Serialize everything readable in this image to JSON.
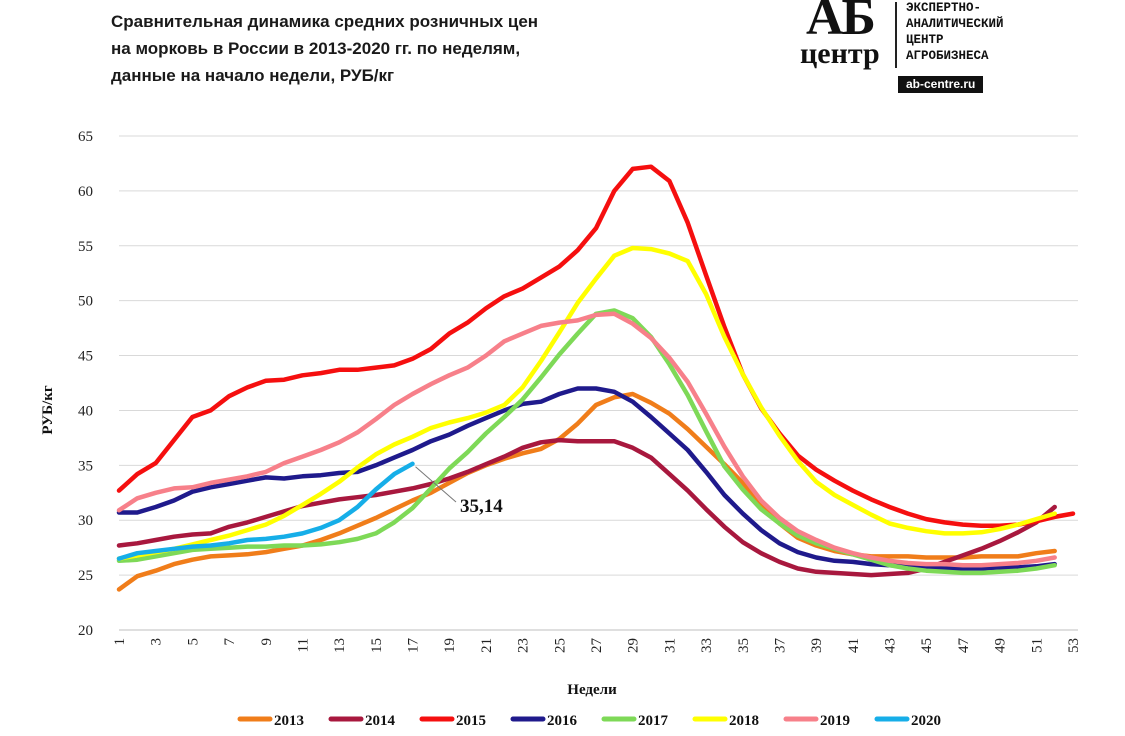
{
  "title_lines": [
    "Сравнительная  динамика  средних  розничных  цен",
    "на морковь  в России в 2013-2020 гг. по неделям,",
    "данные  на начало  недели, РУБ/кг"
  ],
  "logo": {
    "ab": "АБ",
    "center": "центр",
    "text_lines": [
      "ЭКСПЕРТНО-",
      "АНАЛИТИЧЕСКИЙ",
      "ЦЕНТР",
      "АГРОБИЗНЕСА"
    ],
    "url": "ab-centre.ru"
  },
  "chart_data": {
    "type": "line",
    "title": "Сравнительная динамика средних розничных цен на морковь в России в 2013-2020 гг. по неделям, данные на начало недели, РУБ/кг",
    "xlabel": "Недели",
    "ylabel": "РУБ/кг",
    "xlim": [
      1,
      53
    ],
    "ylim": [
      20,
      65
    ],
    "x_ticks": [
      1,
      3,
      5,
      7,
      9,
      11,
      13,
      15,
      17,
      19,
      21,
      23,
      25,
      27,
      29,
      31,
      33,
      35,
      37,
      39,
      41,
      43,
      45,
      47,
      49,
      51,
      53
    ],
    "y_ticks": [
      20,
      25,
      30,
      35,
      40,
      45,
      50,
      55,
      60,
      65
    ],
    "gridlines": "horizontal",
    "legend_position": "bottom",
    "annotation": {
      "text": "35,14",
      "series": "2020",
      "week": 17,
      "value": 35.14
    },
    "series": [
      {
        "name": "2013",
        "color": "#f07d1a",
        "start_week": 1,
        "values": [
          23.7,
          24.9,
          25.4,
          26.0,
          26.4,
          26.7,
          26.8,
          26.9,
          27.1,
          27.4,
          27.7,
          28.2,
          28.8,
          29.5,
          30.2,
          31.0,
          31.8,
          32.5,
          33.4,
          34.3,
          35.0,
          35.6,
          36.1,
          36.5,
          37.4,
          38.8,
          40.5,
          41.2,
          41.5,
          40.7,
          39.7,
          38.3,
          36.7,
          35.1,
          33.4,
          31.5,
          29.7,
          28.4,
          27.7,
          27.2,
          26.9,
          26.7,
          26.7,
          26.7,
          26.6,
          26.6,
          26.6,
          26.7,
          26.7,
          26.7,
          27.0,
          27.2
        ]
      },
      {
        "name": "2014",
        "color": "#a8183e",
        "start_week": 1,
        "values": [
          27.7,
          27.9,
          28.2,
          28.5,
          28.7,
          28.8,
          29.4,
          29.8,
          30.3,
          30.8,
          31.3,
          31.6,
          31.9,
          32.1,
          32.3,
          32.6,
          32.9,
          33.3,
          33.8,
          34.4,
          35.1,
          35.8,
          36.6,
          37.1,
          37.3,
          37.2,
          37.2,
          37.2,
          36.6,
          35.7,
          34.2,
          32.7,
          31.0,
          29.4,
          28.0,
          27.0,
          26.2,
          25.6,
          25.3,
          25.2,
          25.1,
          25.0,
          25.1,
          25.2,
          25.6,
          26.2,
          26.8,
          27.4,
          28.1,
          28.9,
          29.8,
          31.2
        ]
      },
      {
        "name": "2015",
        "color": "#f50f0f",
        "start_week": 1,
        "values": [
          32.7,
          34.2,
          35.2,
          37.3,
          39.4,
          40.0,
          41.3,
          42.1,
          42.7,
          42.8,
          43.2,
          43.4,
          43.7,
          43.7,
          43.9,
          44.1,
          44.7,
          45.6,
          47.0,
          48.0,
          49.3,
          50.4,
          51.1,
          52.1,
          53.1,
          54.6,
          56.6,
          60.0,
          62.0,
          62.2,
          60.9,
          57.1,
          52.3,
          47.6,
          43.3,
          40.2,
          37.9,
          35.9,
          34.6,
          33.6,
          32.7,
          31.9,
          31.2,
          30.6,
          30.1,
          29.8,
          29.6,
          29.5,
          29.5,
          29.6,
          29.9,
          30.3,
          30.6
        ]
      },
      {
        "name": "2016",
        "color": "#1f1a8c",
        "start_week": 1,
        "values": [
          30.7,
          30.7,
          31.2,
          31.8,
          32.6,
          33.0,
          33.3,
          33.6,
          33.9,
          33.8,
          34.0,
          34.1,
          34.3,
          34.4,
          35.0,
          35.7,
          36.4,
          37.2,
          37.8,
          38.6,
          39.3,
          40.0,
          40.6,
          40.8,
          41.5,
          42.0,
          42.0,
          41.7,
          40.8,
          39.4,
          37.9,
          36.4,
          34.4,
          32.3,
          30.6,
          29.1,
          27.9,
          27.1,
          26.6,
          26.3,
          26.2,
          26.0,
          25.9,
          25.8,
          25.7,
          25.6,
          25.6,
          25.6,
          25.7,
          25.7,
          25.8,
          26.0
        ]
      },
      {
        "name": "2017",
        "color": "#7ed957",
        "start_week": 1,
        "values": [
          26.3,
          26.4,
          26.7,
          27.0,
          27.3,
          27.4,
          27.5,
          27.6,
          27.6,
          27.7,
          27.7,
          27.8,
          28.0,
          28.3,
          28.8,
          29.8,
          31.1,
          32.9,
          34.7,
          36.2,
          37.9,
          39.4,
          41.0,
          43.0,
          45.1,
          47.0,
          48.8,
          49.1,
          48.4,
          46.7,
          44.2,
          41.4,
          38.1,
          34.9,
          32.8,
          31.0,
          29.7,
          28.6,
          27.9,
          27.4,
          26.9,
          26.4,
          25.9,
          25.6,
          25.4,
          25.3,
          25.2,
          25.2,
          25.3,
          25.4,
          25.6,
          25.9
        ]
      },
      {
        "name": "2018",
        "color": "#ffff00",
        "start_week": 1,
        "values": [
          26.5,
          26.8,
          27.1,
          27.4,
          27.8,
          28.2,
          28.6,
          29.1,
          29.6,
          30.4,
          31.4,
          32.4,
          33.5,
          34.8,
          36.0,
          36.9,
          37.6,
          38.4,
          38.9,
          39.3,
          39.8,
          40.5,
          42.1,
          44.5,
          47.1,
          49.8,
          52.0,
          54.1,
          54.8,
          54.7,
          54.3,
          53.6,
          50.6,
          46.7,
          43.3,
          40.3,
          37.7,
          35.4,
          33.5,
          32.3,
          31.4,
          30.5,
          29.7,
          29.3,
          29.0,
          28.8,
          28.8,
          28.9,
          29.2,
          29.6,
          30.1,
          30.6
        ]
      },
      {
        "name": "2019",
        "color": "#f7808a",
        "start_week": 1,
        "values": [
          30.9,
          32.0,
          32.5,
          32.9,
          33.0,
          33.4,
          33.7,
          34.0,
          34.4,
          35.2,
          35.8,
          36.4,
          37.1,
          38.0,
          39.2,
          40.5,
          41.5,
          42.4,
          43.2,
          43.9,
          45.0,
          46.3,
          47.0,
          47.7,
          48.0,
          48.2,
          48.7,
          48.8,
          47.9,
          46.6,
          44.8,
          42.6,
          39.7,
          36.7,
          34.0,
          31.8,
          30.2,
          29.0,
          28.2,
          27.5,
          27.0,
          26.6,
          26.3,
          26.1,
          26.0,
          26.0,
          25.9,
          25.9,
          26.0,
          26.1,
          26.3,
          26.6
        ]
      },
      {
        "name": "2020",
        "color": "#16aee8",
        "start_week": 1,
        "values": [
          26.5,
          27.0,
          27.2,
          27.4,
          27.6,
          27.7,
          27.9,
          28.2,
          28.3,
          28.5,
          28.8,
          29.3,
          30.0,
          31.2,
          32.8,
          34.2,
          35.14
        ]
      }
    ]
  }
}
